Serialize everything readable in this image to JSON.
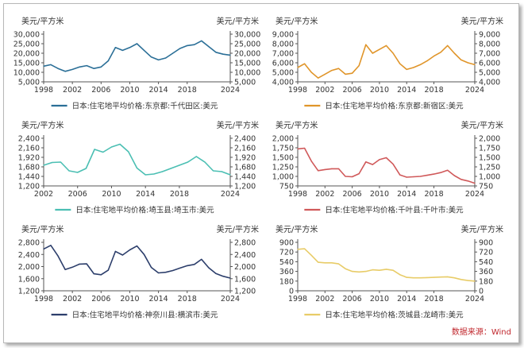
{
  "source_text": "数据来源：Wind",
  "chart_data": [
    {
      "type": "line",
      "legend": "日本:住宅地平均价格:东京都:千代田区:美元",
      "unit_left": "美元/平方米",
      "unit_right": "美元/平方米",
      "color": "#2b6f97",
      "ylim": [
        5000,
        30000
      ],
      "yticks": [
        5000,
        10000,
        15000,
        20000,
        25000,
        30000
      ],
      "ytick_labels": [
        "5,000",
        "10,000",
        "15,000",
        "20,000",
        "25,000",
        "30,000"
      ],
      "xlim": [
        1998,
        2024
      ],
      "xticks": [
        1998,
        2002,
        2006,
        2010,
        2014,
        2018,
        2024
      ],
      "x": [
        1998,
        1999,
        2000,
        2001,
        2002,
        2003,
        2004,
        2005,
        2006,
        2007,
        2008,
        2009,
        2010,
        2011,
        2012,
        2013,
        2014,
        2015,
        2016,
        2017,
        2018,
        2019,
        2020,
        2021,
        2022,
        2023,
        2024
      ],
      "y": [
        13200,
        14000,
        12000,
        10500,
        11500,
        12800,
        13500,
        12000,
        12800,
        16000,
        23000,
        21500,
        23000,
        25000,
        21500,
        18000,
        16500,
        17500,
        20000,
        22500,
        24000,
        24500,
        26500,
        23500,
        20500,
        19500,
        19000
      ]
    },
    {
      "type": "line",
      "legend": "日本:住宅地平均价格:东京都:新宿区:美元",
      "unit_left": "美元/平方米",
      "unit_right": "美元/平方米",
      "color": "#e0952a",
      "ylim": [
        4000,
        9000
      ],
      "yticks": [
        4000,
        5000,
        6000,
        7000,
        8000,
        9000
      ],
      "ytick_labels": [
        "4,000",
        "5,000",
        "6,000",
        "7,000",
        "8,000",
        "9,000"
      ],
      "xlim": [
        1998,
        2024
      ],
      "xticks": [
        1998,
        2002,
        2006,
        2010,
        2014,
        2018,
        2024
      ],
      "x": [
        1998,
        1999,
        2000,
        2001,
        2002,
        2003,
        2004,
        2005,
        2006,
        2007,
        2008,
        2009,
        2010,
        2011,
        2012,
        2013,
        2014,
        2015,
        2016,
        2017,
        2018,
        2019,
        2020,
        2021,
        2022,
        2023,
        2024
      ],
      "y": [
        5500,
        5900,
        5000,
        4400,
        4800,
        5200,
        5400,
        4800,
        4900,
        5700,
        7900,
        7000,
        7400,
        7800,
        7000,
        5900,
        5300,
        5500,
        5800,
        6200,
        6700,
        7100,
        7800,
        7000,
        6300,
        6000,
        5800
      ]
    },
    {
      "type": "line",
      "legend": "日本:住宅地平均价格:埼玉县:埼玉市:美元",
      "unit_left": "美元/平方米",
      "unit_right": "美元/平方米",
      "color": "#4bbfb3",
      "ylim": [
        1200,
        2400
      ],
      "yticks": [
        1200,
        1440,
        1680,
        1920,
        2160,
        2400
      ],
      "ytick_labels": [
        "1,200",
        "1,440",
        "1,680",
        "1,920",
        "2,160",
        "2,400"
      ],
      "xlim": [
        2002,
        2024
      ],
      "xticks": [
        2002,
        2006,
        2010,
        2014,
        2018,
        2024
      ],
      "x": [
        2002,
        2003,
        2004,
        2005,
        2006,
        2007,
        2008,
        2009,
        2010,
        2011,
        2012,
        2013,
        2014,
        2015,
        2016,
        2017,
        2018,
        2019,
        2020,
        2021,
        2022,
        2023,
        2024
      ],
      "y": [
        1720,
        1790,
        1800,
        1580,
        1540,
        1640,
        2120,
        2050,
        2180,
        2250,
        2060,
        1650,
        1480,
        1500,
        1560,
        1640,
        1720,
        1800,
        1940,
        1800,
        1580,
        1560,
        1480
      ]
    },
    {
      "type": "line",
      "legend": "日本:住宅地平均价格:千叶县:千叶市:美元",
      "unit_left": "美元/平方米",
      "unit_right": "美元/平方米",
      "color": "#d0595a",
      "ylim": [
        750,
        2000
      ],
      "yticks": [
        750,
        1000,
        1250,
        1500,
        1750,
        2000
      ],
      "ytick_labels": [
        "750",
        "1,000",
        "1,250",
        "1,500",
        "1,750",
        "2,000"
      ],
      "xlim": [
        1998,
        2024
      ],
      "xticks": [
        1998,
        2002,
        2006,
        2010,
        2014,
        2018,
        2024
      ],
      "x": [
        1998,
        1999,
        2000,
        2001,
        2002,
        2003,
        2004,
        2005,
        2006,
        2007,
        2008,
        2009,
        2010,
        2011,
        2012,
        2013,
        2014,
        2015,
        2016,
        2017,
        2018,
        2019,
        2020,
        2021,
        2022,
        2023,
        2024
      ],
      "y": [
        1720,
        1740,
        1400,
        1150,
        1180,
        1200,
        1200,
        1000,
        990,
        1070,
        1380,
        1310,
        1440,
        1490,
        1320,
        1040,
        980,
        990,
        1000,
        1030,
        1060,
        1100,
        1160,
        1020,
        920,
        880,
        820
      ]
    },
    {
      "type": "line",
      "legend": "日本:住宅地平均价格:神奈川县:横滨市:美元",
      "unit_left": "美元/平方米",
      "unit_right": "美元/平方米",
      "color": "#2c3e6b",
      "ylim": [
        1200,
        2800
      ],
      "yticks": [
        1200,
        1600,
        2000,
        2400,
        2800
      ],
      "ytick_labels": [
        "1,200",
        "1,600",
        "2,000",
        "2,400",
        "2,800"
      ],
      "xlim": [
        1998,
        2024
      ],
      "xticks": [
        1998,
        2002,
        2006,
        2010,
        2014,
        2018,
        2024
      ],
      "x": [
        1998,
        1999,
        2000,
        2001,
        2002,
        2003,
        2004,
        2005,
        2006,
        2007,
        2008,
        2009,
        2010,
        2011,
        2012,
        2013,
        2014,
        2015,
        2016,
        2017,
        2018,
        2019,
        2020,
        2021,
        2022,
        2023,
        2024
      ],
      "y": [
        2580,
        2700,
        2350,
        1900,
        1980,
        2080,
        2090,
        1760,
        1730,
        1880,
        2500,
        2380,
        2550,
        2680,
        2400,
        1970,
        1790,
        1810,
        1870,
        1950,
        2030,
        2070,
        2240,
        1960,
        1770,
        1680,
        1620
      ]
    },
    {
      "type": "line",
      "legend": "日本:住宅地平均价格:茨城县:龙崎市:美元",
      "unit_left": "美元/平方米",
      "unit_right": "美元/平方米",
      "color": "#e8cc68",
      "ylim": [
        0,
        900
      ],
      "yticks": [
        0,
        180,
        360,
        540,
        720,
        900
      ],
      "ytick_labels": [
        "0",
        "180",
        "360",
        "540",
        "720",
        "900"
      ],
      "xlim": [
        1998,
        2024
      ],
      "xticks": [
        1998,
        2002,
        2006,
        2010,
        2014,
        2018,
        2024
      ],
      "x": [
        1998,
        1999,
        2000,
        2001,
        2002,
        2003,
        2004,
        2005,
        2006,
        2007,
        2008,
        2009,
        2010,
        2011,
        2012,
        2013,
        2014,
        2015,
        2016,
        2017,
        2018,
        2019,
        2020,
        2021,
        2022,
        2023,
        2024
      ],
      "y": [
        770,
        780,
        660,
        530,
        520,
        520,
        500,
        410,
        360,
        350,
        360,
        390,
        380,
        400,
        380,
        300,
        250,
        240,
        240,
        245,
        250,
        255,
        260,
        240,
        210,
        190,
        180
      ]
    }
  ]
}
